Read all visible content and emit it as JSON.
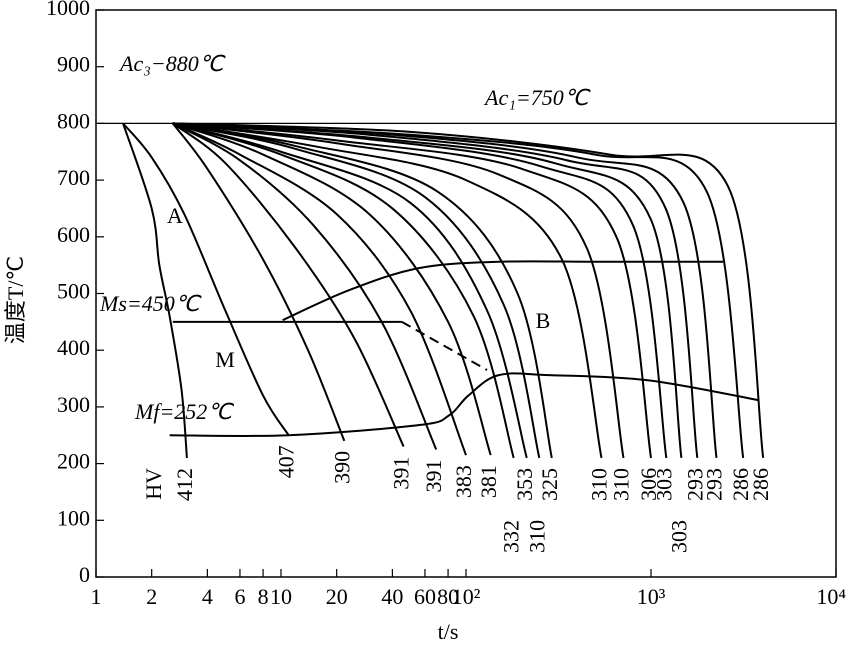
{
  "chart_data": {
    "type": "line",
    "xscale": "log",
    "xlim": [
      1,
      10000
    ],
    "ylim": [
      0,
      1000
    ],
    "xticks": [
      1,
      2,
      4,
      6,
      8,
      10,
      20,
      40,
      60,
      80,
      {
        "value": 100,
        "label": "10²"
      },
      {
        "value": 1000,
        "label": "10³"
      },
      {
        "value": 10000,
        "label": "10⁴"
      }
    ],
    "yticks": [
      0,
      100,
      200,
      300,
      400,
      500,
      600,
      700,
      800,
      900,
      1000
    ],
    "xlabel": "t/s",
    "ylabel": "温度T/℃",
    "color": "#000000",
    "hline": 800,
    "annotations": [
      "Ac₃−880℃",
      "Ac₁=750℃",
      "Ms=450℃",
      "Mf=252℃",
      "A",
      "M",
      "B"
    ],
    "hardness_label": "HV",
    "series": [
      {
        "name": "412",
        "x": [
          1.4,
          2,
          2.2,
          2.5,
          2.9,
          3.1
        ],
        "values": [
          800,
          650,
          550,
          460,
          330,
          210
        ]
      },
      {
        "name": "407",
        "x": [
          1.4,
          2,
          3,
          5,
          8,
          11
        ],
        "values": [
          800,
          740,
          640,
          470,
          320,
          250
        ]
      },
      {
        "name": "390",
        "x": [
          2.6,
          4,
          8,
          14,
          22
        ],
        "values": [
          800,
          720,
          560,
          400,
          240
        ]
      },
      {
        "name": "391",
        "x": [
          2.6,
          5,
          12,
          25,
          46
        ],
        "values": [
          800,
          730,
          580,
          420,
          230
        ]
      },
      {
        "name": "391",
        "x": [
          2.6,
          6,
          15,
          35,
          69
        ],
        "values": [
          800,
          735,
          620,
          450,
          225
        ]
      },
      {
        "name": "383",
        "x": [
          2.6,
          6,
          20,
          50,
          100
        ],
        "values": [
          800,
          745,
          640,
          470,
          215
        ]
      },
      {
        "name": "381",
        "x": [
          2.6,
          8,
          30,
          80,
          136
        ],
        "values": [
          800,
          745,
          640,
          450,
          215
        ]
      },
      {
        "name": "332",
        "x": [
          2.6,
          10,
          40,
          110,
          181
        ],
        "values": [
          800,
          745,
          650,
          460,
          210
        ]
      },
      {
        "name": "353",
        "x": [
          2.6,
          10,
          50,
          130,
          213
        ],
        "values": [
          800,
          750,
          660,
          470,
          210
        ]
      },
      {
        "name": "310",
        "x": [
          2.6,
          12,
          60,
          160,
          249
        ],
        "values": [
          800,
          755,
          670,
          480,
          210
        ]
      },
      {
        "name": "325",
        "x": [
          2.6,
          12,
          70,
          190,
          291
        ],
        "values": [
          800,
          760,
          680,
          500,
          210
        ]
      },
      {
        "name": "310",
        "x": [
          2.6,
          15,
          100,
          330,
          540
        ],
        "values": [
          800,
          760,
          700,
          560,
          210
        ]
      },
      {
        "name": "310",
        "x": [
          2.6,
          20,
          150,
          450,
          710
        ],
        "values": [
          800,
          765,
          710,
          580,
          210
        ]
      },
      {
        "name": "306",
        "x": [
          2.6,
          20,
          200,
          650,
          1000
        ],
        "values": [
          800,
          770,
          720,
          600,
          210
        ]
      },
      {
        "name": "303",
        "x": [
          2.6,
          25,
          250,
          800,
          1210
        ],
        "values": [
          800,
          775,
          725,
          620,
          210
        ]
      },
      {
        "name": "303",
        "x": [
          2.6,
          30,
          300,
          1000,
          1460
        ],
        "values": [
          800,
          775,
          730,
          630,
          210
        ]
      },
      {
        "name": "293",
        "x": [
          2.6,
          30,
          350,
          1200,
          1780
        ],
        "values": [
          800,
          780,
          735,
          650,
          210
        ]
      },
      {
        "name": "293",
        "x": [
          2.6,
          40,
          400,
          1500,
          2260
        ],
        "values": [
          800,
          780,
          740,
          660,
          210
        ]
      },
      {
        "name": "286",
        "x": [
          2.6,
          50,
          500,
          2000,
          3150
        ],
        "values": [
          800,
          780,
          745,
          680,
          210
        ]
      },
      {
        "name": "286",
        "x": [
          2.6,
          50,
          600,
          2600,
          4040
        ],
        "values": [
          800,
          785,
          745,
          690,
          210
        ]
      }
    ],
    "boundaries": [
      {
        "x": [
          10.2,
          23.4,
          56,
          150,
          520,
          2450
        ],
        "values": [
          453,
          506,
          545,
          556,
          556,
          556
        ],
        "dashed": false
      },
      {
        "x": [
          2.5,
          11,
          56,
          81,
          103,
          150,
          280,
          960,
          3800
        ],
        "values": [
          250,
          250,
          268,
          285,
          320,
          356,
          356,
          347,
          312
        ],
        "dashed": false
      },
      {
        "x": [
          2.6,
          45
        ],
        "values": [
          450,
          450
        ],
        "dashed": false
      },
      {
        "x": [
          45,
          130
        ],
        "values": [
          450,
          365
        ],
        "dashed": true
      }
    ]
  }
}
